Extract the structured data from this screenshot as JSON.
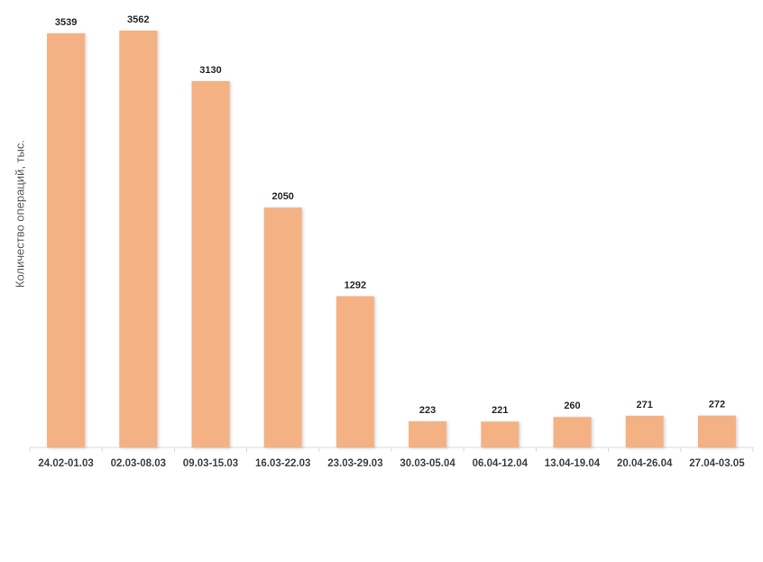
{
  "chart_data": {
    "type": "bar",
    "y_label": "Количество операций, тыс.",
    "categories": [
      "24.02-01.03",
      "02.03-08.03",
      "09.03-15.03",
      "16.03-22.03",
      "23.03-29.03",
      "30.03-05.04",
      "06.04-12.04",
      "13.04-19.04",
      "20.04-26.04",
      "27.04-03.05"
    ],
    "values": [
      3539,
      3562,
      3130,
      2050,
      1292,
      223,
      221,
      260,
      271,
      272
    ],
    "color": "#f4b183",
    "ylim": [
      0,
      3600
    ]
  }
}
